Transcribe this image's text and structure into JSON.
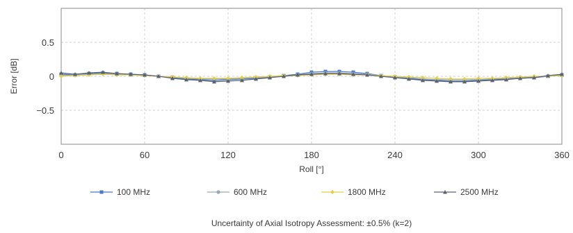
{
  "chart_data": {
    "type": "line",
    "xlabel": "Roll [°]",
    "ylabel": "Error [dB]",
    "xlim": [
      0,
      360
    ],
    "ylim": [
      -1,
      1
    ],
    "xticks": [
      0,
      60,
      120,
      180,
      240,
      300,
      360
    ],
    "yticks": [
      0.5,
      0,
      -0.5
    ],
    "ytick_labels": [
      "0.5",
      "0",
      "−0.5"
    ],
    "grid": true,
    "legend_position": "bottom",
    "footnote": "Uncertainty of Axial Isotropy Assessment: ±0.5% (k=2)",
    "x": [
      0,
      10,
      20,
      30,
      40,
      50,
      60,
      70,
      80,
      90,
      100,
      110,
      120,
      130,
      140,
      150,
      160,
      170,
      180,
      190,
      200,
      210,
      220,
      230,
      240,
      250,
      260,
      270,
      280,
      290,
      300,
      310,
      320,
      330,
      340,
      350,
      360
    ],
    "series": [
      {
        "name": "100 MHz",
        "color": "#4a78c8",
        "marker": "square",
        "values": [
          0.03,
          0.02,
          0.04,
          0.05,
          0.04,
          0.03,
          0.02,
          0.0,
          -0.02,
          -0.04,
          -0.05,
          -0.06,
          -0.05,
          -0.04,
          -0.03,
          -0.01,
          0.01,
          0.03,
          0.06,
          0.07,
          0.07,
          0.06,
          0.04,
          0.01,
          -0.01,
          -0.03,
          -0.05,
          -0.06,
          -0.07,
          -0.07,
          -0.06,
          -0.05,
          -0.04,
          -0.03,
          -0.02,
          0.0,
          0.02
        ]
      },
      {
        "name": "600 MHz",
        "color": "#9aa6b4",
        "marker": "circle",
        "values": [
          0.01,
          0.02,
          0.03,
          0.04,
          0.03,
          0.02,
          0.01,
          0.0,
          -0.01,
          -0.03,
          -0.04,
          -0.04,
          -0.04,
          -0.03,
          -0.02,
          -0.01,
          0.0,
          0.02,
          0.04,
          0.05,
          0.05,
          0.04,
          0.03,
          0.01,
          -0.01,
          -0.02,
          -0.04,
          -0.05,
          -0.05,
          -0.05,
          -0.05,
          -0.04,
          -0.03,
          -0.02,
          -0.01,
          0.0,
          0.01
        ]
      },
      {
        "name": "1800 MHz",
        "color": "#e3cf4a",
        "marker": "diamond",
        "values": [
          0.0,
          0.01,
          0.02,
          0.03,
          0.02,
          0.02,
          0.01,
          0.0,
          -0.01,
          -0.02,
          -0.03,
          -0.03,
          -0.03,
          -0.02,
          -0.01,
          0.0,
          0.01,
          0.01,
          0.02,
          0.03,
          0.03,
          0.02,
          0.02,
          0.01,
          0.0,
          -0.01,
          -0.02,
          -0.03,
          -0.04,
          -0.04,
          -0.03,
          -0.03,
          -0.02,
          -0.01,
          0.0,
          0.0,
          0.01
        ]
      },
      {
        "name": "2500 MHz",
        "color": "#5a6270",
        "marker": "triangle",
        "values": [
          0.05,
          0.03,
          0.05,
          0.06,
          0.04,
          0.03,
          0.02,
          0.0,
          -0.03,
          -0.05,
          -0.06,
          -0.08,
          -0.07,
          -0.06,
          -0.04,
          -0.02,
          0.0,
          0.02,
          0.03,
          0.04,
          0.04,
          0.03,
          0.02,
          0.0,
          -0.02,
          -0.04,
          -0.06,
          -0.07,
          -0.08,
          -0.08,
          -0.07,
          -0.06,
          -0.05,
          -0.03,
          -0.02,
          0.01,
          0.03
        ]
      }
    ]
  }
}
